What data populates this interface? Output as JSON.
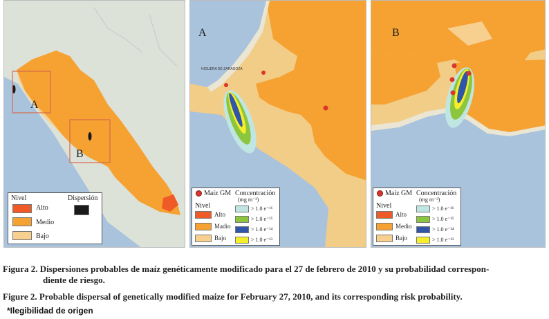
{
  "panel1": {
    "inset_labels": [
      "A",
      "B"
    ],
    "legend": {
      "title": "Nivel",
      "dispersion_title": "Dispersión",
      "levels": [
        "Alto",
        "Medio",
        "Bajo"
      ]
    }
  },
  "panel2": {
    "letter": "A",
    "place_label": "HIGUERA DE ZARAGOZA",
    "legend": {
      "gm_label": "Maíz GM",
      "nivel_title": "Nivel",
      "conc_title": "Concentración",
      "conc_units": "(mg m⁻³)",
      "levels": [
        "Alto",
        "Madio",
        "Bajo"
      ],
      "concentrations": [
        "> 1.0 e⁻¹⁶",
        "> 1.0 e⁻¹⁵",
        "> 1.0 e⁻¹⁴",
        "> 1.0 e⁻¹³"
      ]
    }
  },
  "panel3": {
    "letter": "B",
    "legend": {
      "gm_label": "Maíz GM",
      "nivel_title": "Nivel",
      "conc_title": "Concentración",
      "conc_units": "(mg m⁻³)",
      "levels": [
        "Alto",
        "Medio",
        "Bajo"
      ],
      "concentrations": [
        "> 1.0 e⁻¹⁶",
        "> 1.0 e⁻¹⁵",
        "> 1.0 e⁻¹⁴",
        "> 1.0 e⁻¹³"
      ]
    }
  },
  "colors": {
    "alto": "#ef5a27",
    "medio": "#f5a233",
    "bajo": "#f7cf8f",
    "dispersion": "#1a1a1a",
    "conc16": "#bfe6e3",
    "conc15": "#8cc63f",
    "conc14": "#2f56a8",
    "conc13": "#f5ee2a",
    "water": "#a9c3dd",
    "gm_dot": "#d9352c"
  },
  "caption": {
    "es_line1": "Figura 2. Dispersiones probables de maíz genéticamente modificado para el 27 de febrero de 2010 y su probabilidad correspon-",
    "es_line2": "diente de riesgo.",
    "en": "Figure 2. Probable dispersal of genetically modified maize for February 27, 2010, and its corresponding risk probability.",
    "note": "*Ilegibilidad de origen"
  }
}
